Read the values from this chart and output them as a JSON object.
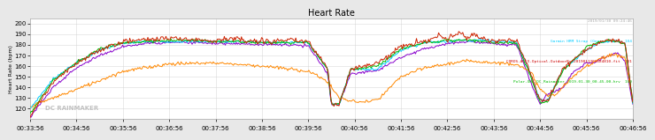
{
  "title": "Heart Rate",
  "ylabel": "Heart Rate (bpm)",
  "ylim": [
    110,
    205
  ],
  "yticks": [
    120,
    130,
    140,
    150,
    160,
    170,
    180,
    190,
    200
  ],
  "xtick_labels": [
    "00:33:56",
    "00:34:56",
    "00:35:56",
    "00:36:56",
    "00:37:56",
    "00:38:56",
    "00:39:56",
    "00:40:56",
    "00:41:56",
    "00:42:56",
    "00:43:56",
    "00:44:56",
    "00:45:56",
    "00:46:56"
  ],
  "background_color": "#e8e8e8",
  "plot_bg_color": "#ffffff",
  "grid_color": "#d0d0d0",
  "watermark": "DC RAINMAKER",
  "legend_date": "2019/01/30 09:24:46",
  "legend_lines": [
    {
      "label": "Garmin HRM Strap (Generic) [1]  104",
      "color": "#00ccff"
    },
    {
      "label": "COROS-APEX-Optical-OutdoorRun2019011300084810.fit  101",
      "color": "#cc0000"
    },
    {
      "label": "Polar-OH1-DC_Rainmaker_2019-01-30_00-45-00.hrv  100",
      "color": "#00bb00"
    }
  ],
  "trace_colors": [
    "#00ccff",
    "#ff8800",
    "#cc2200",
    "#00bb00",
    "#8800cc"
  ],
  "trace_lw": 0.7,
  "title_fontsize": 7,
  "tick_fontsize": 5
}
